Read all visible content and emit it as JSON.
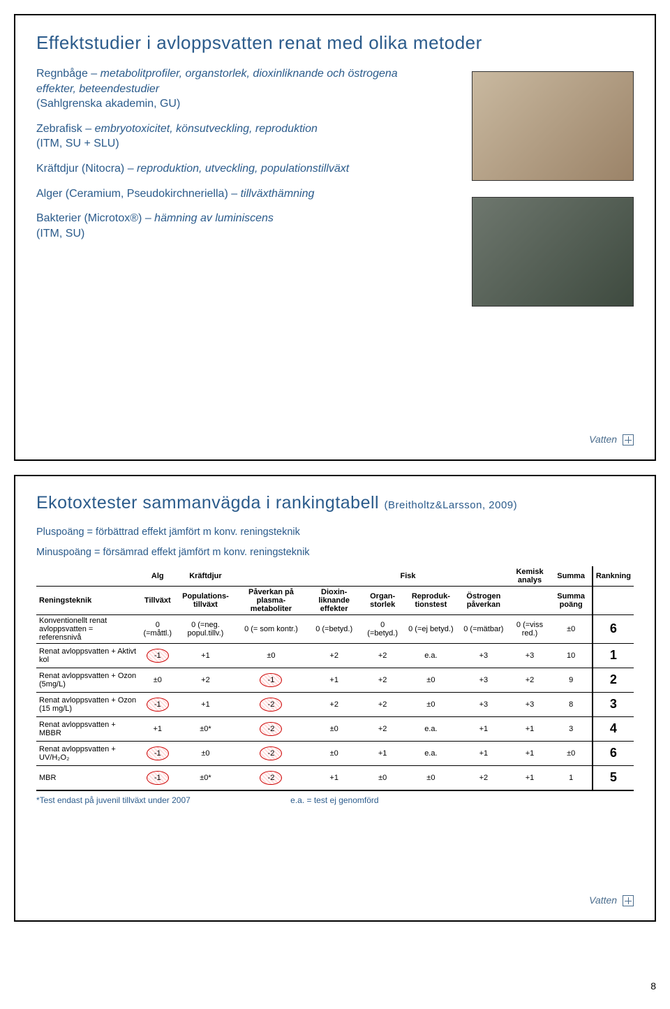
{
  "page_number": "8",
  "slide1": {
    "title": "Effektstudier i avloppsvatten renat med olika metoder",
    "bullets": [
      {
        "lead": "Regnbåge – metabolitprofiler, organstorlek, dioxinliknande och östrogena effekter, beteendestudier",
        "src": "(Sahlgrenska akademin, GU)"
      },
      {
        "lead": "Zebrafisk – embryotoxicitet, könsutveckling, reproduktion",
        "src": "(ITM, SU + SLU)"
      },
      {
        "lead": "Kräftdjur (Nitocra) – reproduktion, utveckling, populationstillväxt",
        "src": ""
      },
      {
        "lead": "Alger (Ceramium, Pseudokirchneriella) – tillväxthämning",
        "src": ""
      },
      {
        "lead": "Bakterier (Microtox®) – hämning av luminiscens",
        "src": "(ITM, SU)"
      }
    ],
    "logo_text": "Vatten"
  },
  "slide2": {
    "title": "Ekotoxtester sammanvägda i rankingtabell",
    "title_src": "(Breitholtz&Larsson, 2009)",
    "subhead1": "Pluspoäng = förbättrad effekt jämfört m konv. reningsteknik",
    "subhead2": "Minuspoäng = försämrad effekt jämfört m konv. reningsteknik",
    "group_headers": [
      "Alg",
      "Kräftdjur",
      "",
      "Fisk",
      "",
      "",
      "",
      "Kemisk analys",
      "Summa",
      "Rankning"
    ],
    "sub_headers": [
      "Tillväxt",
      "Populations-tillväxt",
      "Påverkan på plasma-metaboliter",
      "Dioxin-liknande effekter",
      "Organ-storlek",
      "Reproduk-tionstest",
      "Östrogen påverkan",
      "",
      "Summa poäng",
      ""
    ],
    "row_label_col": "Reningsteknik",
    "rows": [
      {
        "label": "Konventionellt renat avloppsvatten = referensnivå",
        "cells": [
          "0 (=måttl.)",
          "0 (=neg. popul.tillv.)",
          "0 (= som kontr.)",
          "0 (=betyd.)",
          "0 (=betyd.)",
          "0 (=ej betyd.)",
          "0 (=mätbar)",
          "0 (=viss red.)",
          "±0"
        ],
        "rank": "6",
        "circles": []
      },
      {
        "label": "Renat avloppsvatten + Aktivt kol",
        "cells": [
          "-1",
          "+1",
          "±0",
          "+2",
          "+2",
          "e.a.",
          "+3",
          "+3",
          "10"
        ],
        "rank": "1",
        "circles": [
          0
        ]
      },
      {
        "label": "Renat avloppsvatten + Ozon (5mg/L)",
        "cells": [
          "±0",
          "+2",
          "-1",
          "+1",
          "+2",
          "±0",
          "+3",
          "+2",
          "9"
        ],
        "rank": "2",
        "circles": [
          2
        ]
      },
      {
        "label": "Renat avloppsvatten + Ozon (15 mg/L)",
        "cells": [
          "-1",
          "+1",
          "-2",
          "+2",
          "+2",
          "±0",
          "+3",
          "+3",
          "8"
        ],
        "rank": "3",
        "circles": [
          0,
          2
        ]
      },
      {
        "label": "Renat avloppsvatten + MBBR",
        "cells": [
          "+1",
          "±0*",
          "-2",
          "±0",
          "+2",
          "e.a.",
          "+1",
          "+1",
          "3"
        ],
        "rank": "4",
        "circles": [
          2
        ]
      },
      {
        "label": "Renat avloppsvatten + UV/H₂O₂",
        "cells": [
          "-1",
          "±0",
          "-2",
          "±0",
          "+1",
          "e.a.",
          "+1",
          "+1",
          "±0"
        ],
        "rank": "6",
        "circles": [
          0,
          2
        ]
      },
      {
        "label": "MBR",
        "cells": [
          "-1",
          "±0*",
          "-2",
          "+1",
          "±0",
          "±0",
          "+2",
          "+1",
          "1"
        ],
        "rank": "5",
        "circles": [
          0,
          2
        ]
      }
    ],
    "footnote_left": "*Test endast på juvenil tillväxt under 2007",
    "footnote_right": "e.a. = test ej genomförd",
    "logo_text": "Vatten"
  }
}
